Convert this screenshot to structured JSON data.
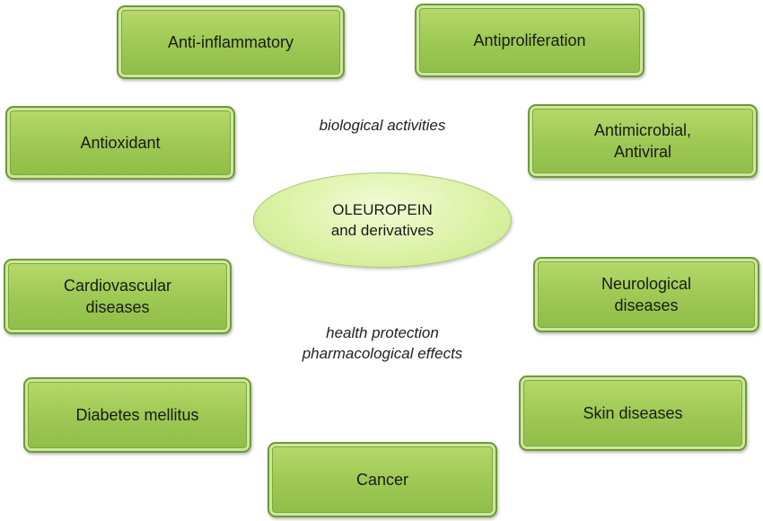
{
  "center": {
    "label": "OLEUROPEIN\nand derivatives"
  },
  "captions": {
    "biological": "biological activities",
    "health": "health protection\npharmacological effects"
  },
  "boxes": {
    "anti_inflammatory": "Anti-inflammatory",
    "antiproliferation": "Antiproliferation",
    "antioxidant": "Antioxidant",
    "antimicrobial": "Antimicrobial,\nAntiviral",
    "cardiovascular": "Cardiovascular\ndiseases",
    "neurological": "Neurological\ndiseases",
    "diabetes": "Diabetes mellitus",
    "skin": "Skin diseases",
    "cancer": "Cancer"
  },
  "colors": {
    "box_fill": "#9cc853",
    "box_border": "#6e9a33",
    "ellipse_fill": "#dcf2a6"
  }
}
